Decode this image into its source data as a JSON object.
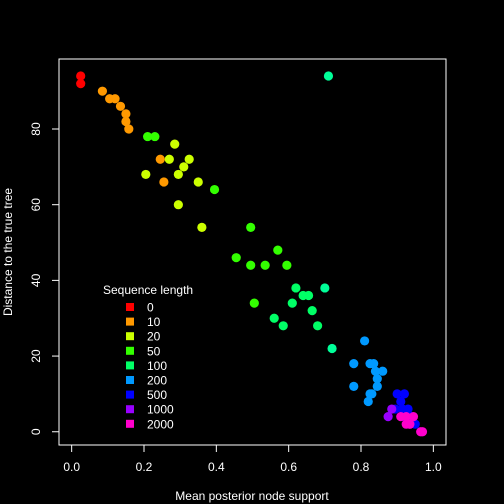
{
  "chart_data": {
    "type": "scatter",
    "title": "",
    "xlabel": "Mean posterior node support",
    "ylabel": "Distance to the true tree",
    "xlim": [
      0.0,
      1.0
    ],
    "ylim": [
      0,
      95
    ],
    "xticks": [
      0.0,
      0.2,
      0.4,
      0.6,
      0.8,
      1.0
    ],
    "xtick_labels": [
      "0.0",
      "0.2",
      "0.4",
      "0.6",
      "0.8",
      "1.0"
    ],
    "yticks": [
      0,
      20,
      40,
      60,
      80
    ],
    "ytick_labels": [
      "0",
      "20",
      "40",
      "60",
      "80"
    ],
    "grid": false,
    "legend": {
      "title": "Sequence length",
      "placement": "bottom-left"
    },
    "background": "#000000",
    "series": [
      {
        "name": "0",
        "color": "#ff0000",
        "points": [
          [
            0.025,
            94
          ],
          [
            0.025,
            92
          ]
        ]
      },
      {
        "name": "10",
        "color": "#ff9900",
        "points": [
          [
            0.085,
            90
          ],
          [
            0.105,
            88
          ],
          [
            0.12,
            88
          ],
          [
            0.135,
            86
          ],
          [
            0.15,
            84
          ],
          [
            0.15,
            82
          ],
          [
            0.158,
            80
          ],
          [
            0.245,
            72
          ],
          [
            0.255,
            66
          ]
        ]
      },
      {
        "name": "20",
        "color": "#ccff00",
        "points": [
          [
            0.205,
            68
          ],
          [
            0.27,
            72
          ],
          [
            0.285,
            76
          ],
          [
            0.295,
            68
          ],
          [
            0.31,
            70
          ],
          [
            0.325,
            72
          ],
          [
            0.295,
            60
          ],
          [
            0.35,
            66
          ],
          [
            0.36,
            54
          ]
        ]
      },
      {
        "name": "50",
        "color": "#33ff00",
        "points": [
          [
            0.21,
            78
          ],
          [
            0.23,
            78
          ],
          [
            0.395,
            64
          ],
          [
            0.455,
            46
          ],
          [
            0.495,
            54
          ],
          [
            0.495,
            44
          ],
          [
            0.535,
            44
          ],
          [
            0.57,
            48
          ],
          [
            0.595,
            44
          ],
          [
            0.505,
            34
          ]
        ]
      },
      {
        "name": "100",
        "color": "#00ff66",
        "points": [
          [
            0.61,
            34
          ],
          [
            0.62,
            38
          ],
          [
            0.64,
            36
          ],
          [
            0.655,
            36
          ],
          [
            0.56,
            30
          ],
          [
            0.585,
            28
          ],
          [
            0.665,
            32
          ],
          [
            0.68,
            28
          ]
        ]
      },
      {
        "name": "100",
        "color": "#00ff99",
        "points": [
          [
            0.71,
            94
          ],
          [
            0.7,
            38
          ],
          [
            0.72,
            22
          ]
        ]
      },
      {
        "name": "200",
        "color": "#0099ff",
        "points": [
          [
            0.78,
            18
          ],
          [
            0.81,
            24
          ],
          [
            0.825,
            18
          ],
          [
            0.835,
            18
          ],
          [
            0.84,
            16
          ],
          [
            0.86,
            16
          ],
          [
            0.845,
            14
          ],
          [
            0.78,
            12
          ],
          [
            0.825,
            10
          ],
          [
            0.845,
            12
          ],
          [
            0.82,
            8
          ],
          [
            0.83,
            10
          ]
        ]
      },
      {
        "name": "500",
        "color": "#0000ff",
        "points": [
          [
            0.9,
            10
          ],
          [
            0.92,
            10
          ],
          [
            0.91,
            8
          ],
          [
            0.895,
            6
          ],
          [
            0.915,
            6
          ],
          [
            0.93,
            6
          ],
          [
            0.92,
            4
          ],
          [
            0.94,
            4
          ],
          [
            0.95,
            2
          ]
        ]
      },
      {
        "name": "1000",
        "color": "#9900ff",
        "points": [
          [
            0.875,
            4
          ],
          [
            0.885,
            6
          ],
          [
            0.935,
            2
          ]
        ]
      },
      {
        "name": "2000",
        "color": "#ff00cc",
        "points": [
          [
            0.91,
            4
          ],
          [
            0.925,
            4
          ],
          [
            0.945,
            4
          ],
          [
            0.925,
            2
          ],
          [
            0.935,
            2
          ],
          [
            0.965,
            0
          ],
          [
            0.97,
            0
          ]
        ]
      }
    ]
  }
}
